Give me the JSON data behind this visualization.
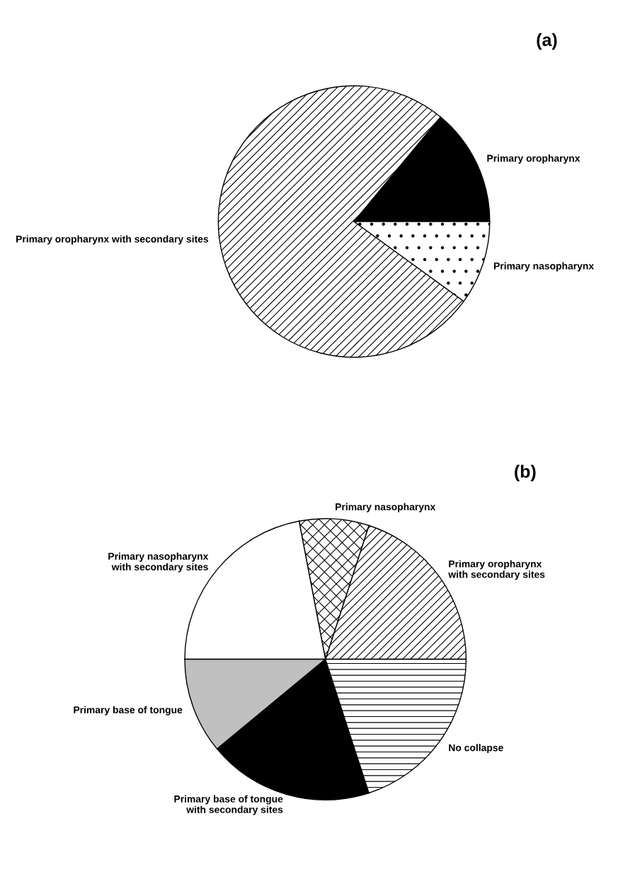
{
  "chart_data": [
    {
      "type": "pie",
      "title": "(a)",
      "categories": [
        "Primary oropharynx",
        "Primary oropharynx with secondary sites",
        "Primary nasopharynx"
      ],
      "values": [
        14,
        76,
        10
      ],
      "colors": [
        "#000000",
        "#000000",
        "#000000"
      ]
    },
    {
      "type": "pie",
      "title": "(b)",
      "categories": [
        "Primary oropharynx\nwith secondary sites",
        "Primary nasopharynx",
        "Primary nasopharynx\nwith secondary sites",
        "Primary base of tongue",
        "Primary base of tongue\nwith secondary sites",
        "No collapse"
      ],
      "values": [
        20,
        8,
        22,
        11,
        19,
        20
      ],
      "colors": [
        "#000000",
        "#000000",
        "#ffffff",
        "#c0c0c0",
        "#000000",
        "#000000"
      ]
    }
  ]
}
